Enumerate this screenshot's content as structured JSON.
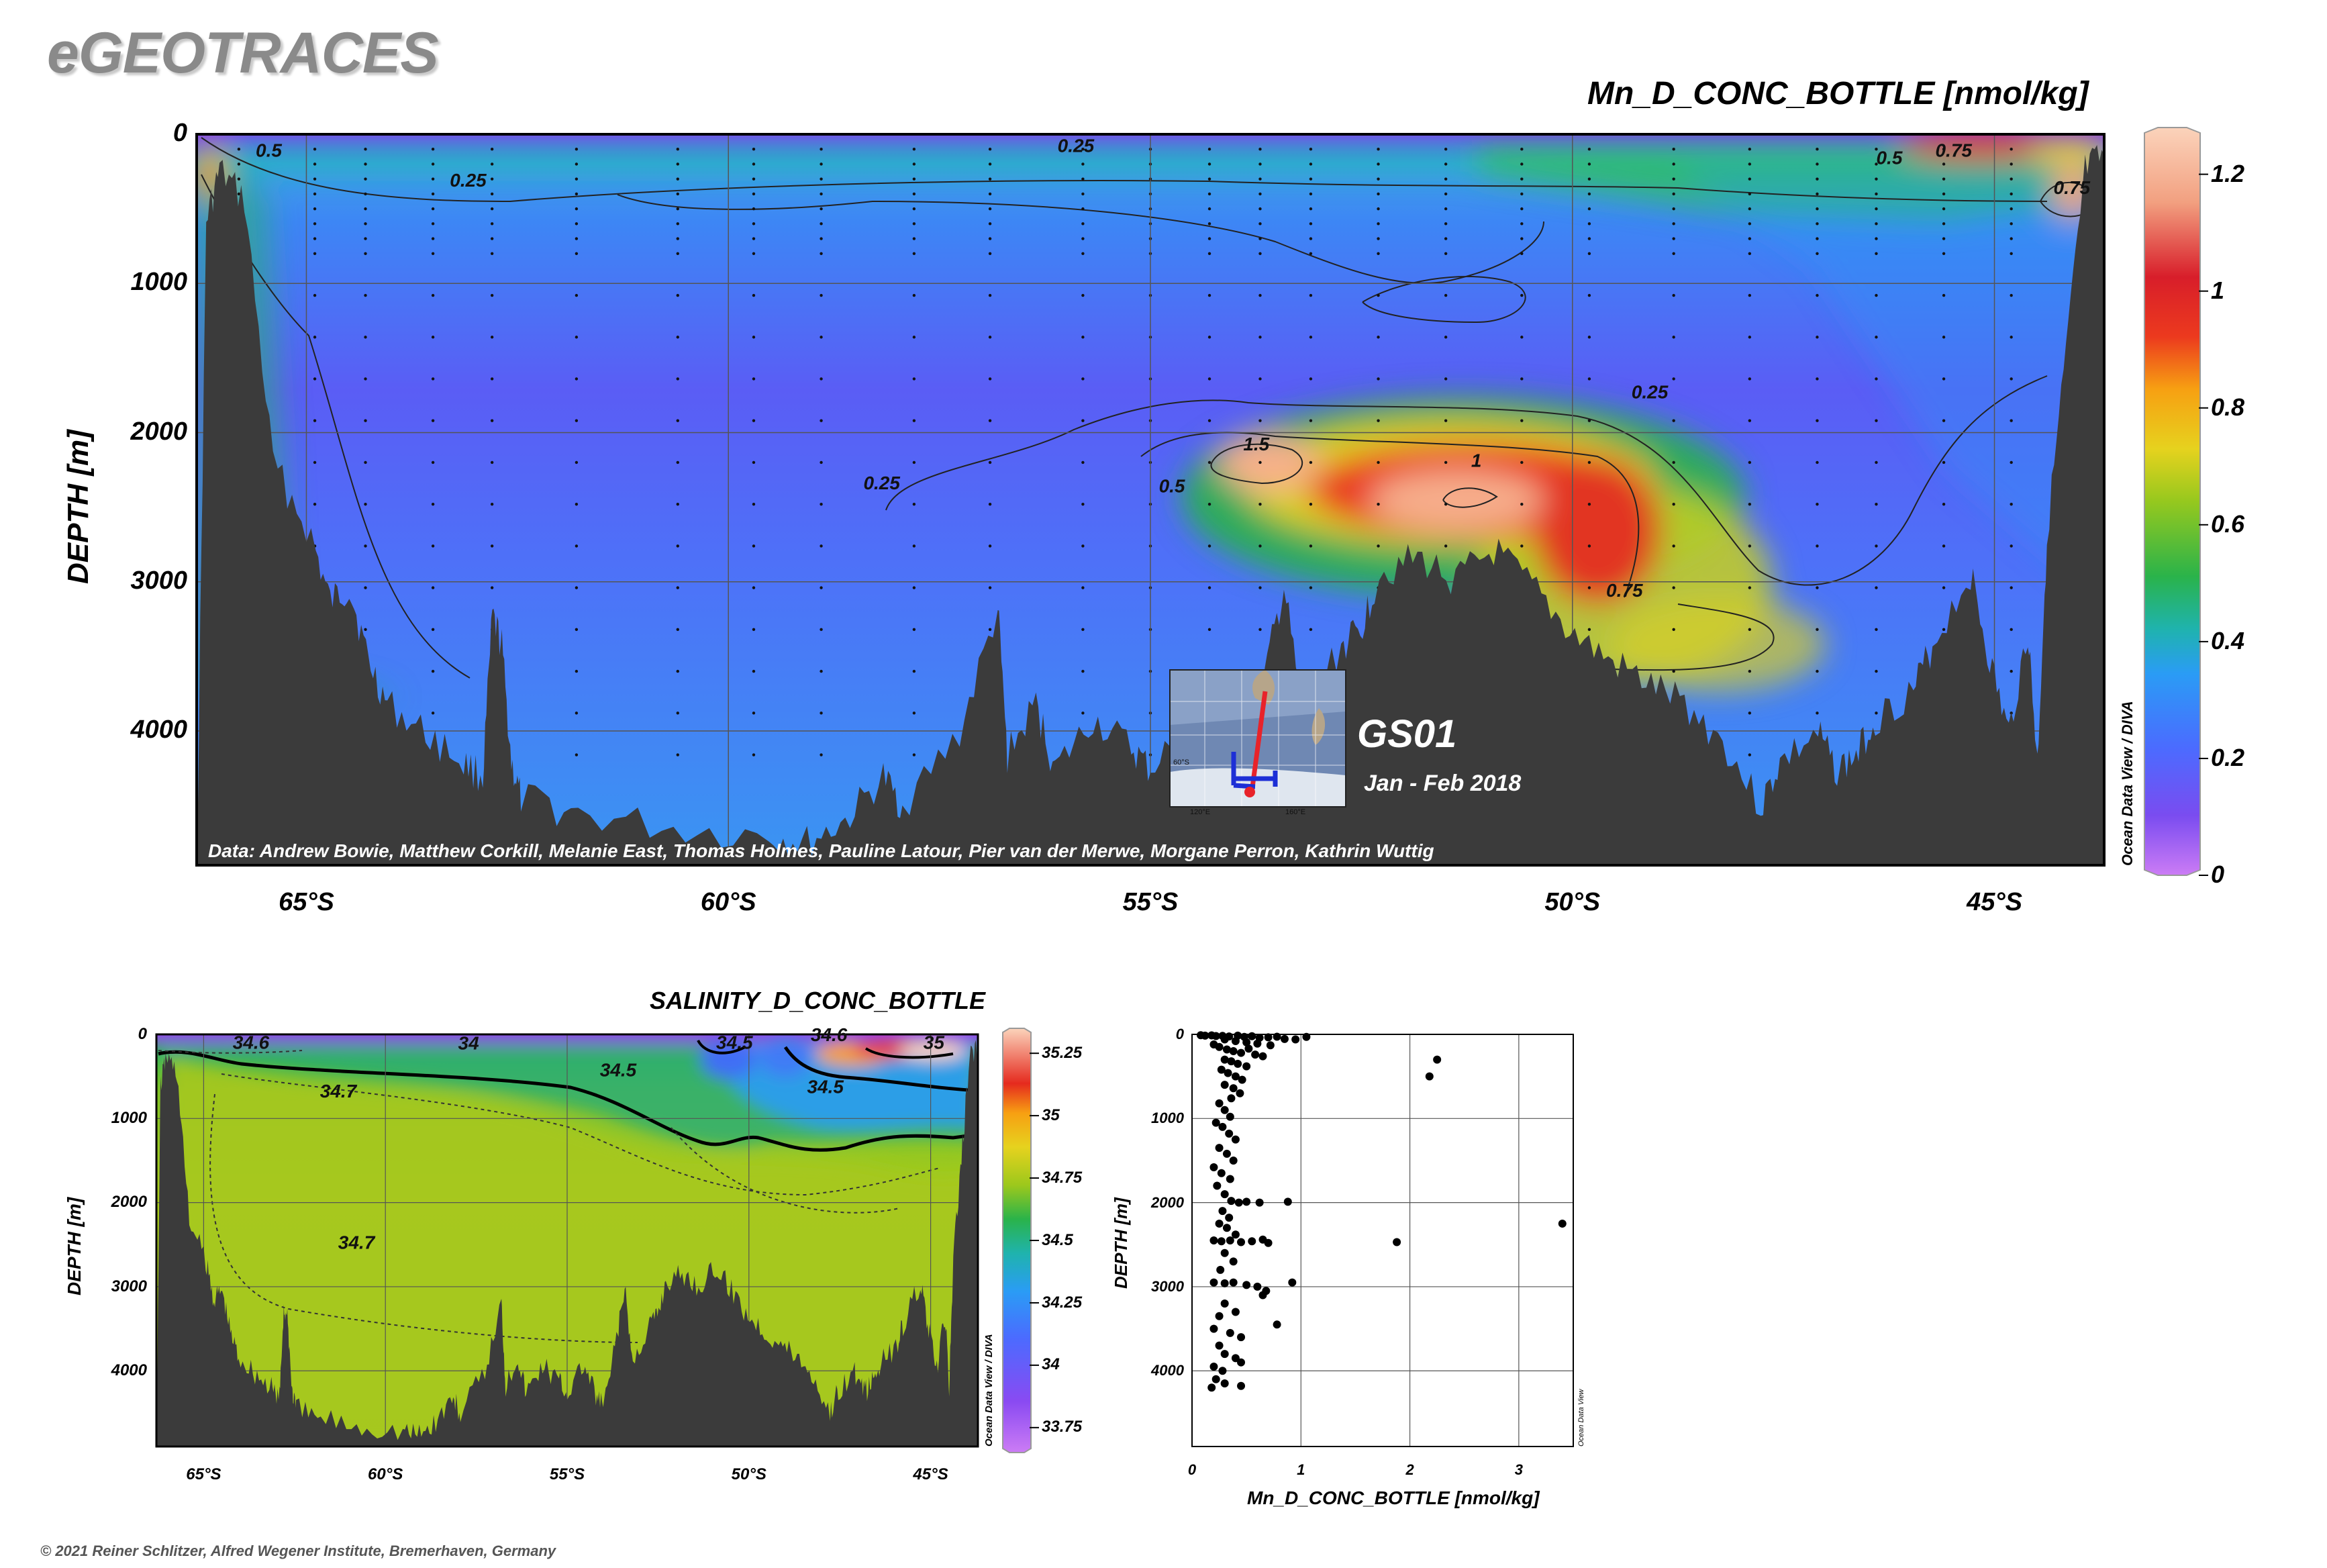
{
  "brand": "eGEOTRACES",
  "copyright": "© 2021 Reiner Schlitzer, Alfred Wegener Institute, Bremerhaven, Germany",
  "colors": {
    "land": "#3b3b3b",
    "bg": "#ffffff"
  },
  "cruise": {
    "name": "GS01",
    "dates": "Jan - Feb 2018"
  },
  "map_inset": {
    "lat_label": "60°S",
    "lon_labels": [
      "120°E",
      "160°E"
    ]
  },
  "chart_data": [
    {
      "type": "heatmap",
      "title": "Mn_D_CONC_BOTTLE [nmol/kg]",
      "ylabel": "DEPTH [m]",
      "x_ticks": [
        "65°S",
        "60°S",
        "55°S",
        "50°S",
        "45°S"
      ],
      "x_tick_values": [
        -65,
        -60,
        -55,
        -50,
        -45
      ],
      "xlim": [
        -66.3,
        -43.7
      ],
      "y_ticks": [
        "0",
        "1000",
        "2000",
        "3000",
        "4000"
      ],
      "y_tick_values": [
        0,
        1000,
        2000,
        3000,
        4000
      ],
      "ylim": [
        4900,
        0
      ],
      "colorbar": {
        "ticks": [
          "1.2",
          "1",
          "0.8",
          "0.6",
          "0.4",
          "0.2",
          "0"
        ],
        "tick_values": [
          1.2,
          1.0,
          0.8,
          0.6,
          0.4,
          0.2,
          0.0
        ],
        "range": [
          0,
          1.28
        ],
        "label": "Ocean Data View / DIVA"
      },
      "contour_labels": [
        {
          "text": "0.5",
          "x": -65.6,
          "y": 150
        },
        {
          "text": "0.25",
          "x": -63.3,
          "y": 350
        },
        {
          "text": "0.25",
          "x": -56.1,
          "y": 120
        },
        {
          "text": "0.25",
          "x": -58.4,
          "y": 2380
        },
        {
          "text": "0.25",
          "x": -49.3,
          "y": 1770
        },
        {
          "text": "1.5",
          "x": -53.9,
          "y": 2120
        },
        {
          "text": "1",
          "x": -51.2,
          "y": 2230
        },
        {
          "text": "0.5",
          "x": -54.9,
          "y": 2400
        },
        {
          "text": "0.75",
          "x": -49.6,
          "y": 3100
        },
        {
          "text": "0.75",
          "x": -45.7,
          "y": 150
        },
        {
          "text": "0.5",
          "x": -46.4,
          "y": 200
        },
        {
          "text": "0.75",
          "x": -44.3,
          "y": 400
        }
      ],
      "credit": "Data: Andrew Bowie, Matthew Corkill, Melanie East, Thomas Holmes, Pauline Latour, Pier van der Merwe, Morgane Perron, Kathrin Wuttig"
    },
    {
      "type": "heatmap",
      "title": "SALINITY_D_CONC_BOTTLE",
      "ylabel": "DEPTH [m]",
      "x_ticks": [
        "65°S",
        "60°S",
        "55°S",
        "50°S",
        "45°S"
      ],
      "x_tick_values": [
        -65,
        -60,
        -55,
        -50,
        -45
      ],
      "xlim": [
        -66.3,
        -43.7
      ],
      "y_ticks": [
        "0",
        "1000",
        "2000",
        "3000",
        "4000"
      ],
      "y_tick_values": [
        0,
        1000,
        2000,
        3000,
        4000
      ],
      "ylim": [
        4900,
        0
      ],
      "colorbar": {
        "ticks": [
          "35.25",
          "35",
          "34.75",
          "34.5",
          "34.25",
          "34",
          "33.75"
        ],
        "tick_values": [
          35.25,
          35.0,
          34.75,
          34.5,
          34.25,
          34.0,
          33.75
        ],
        "range": [
          33.65,
          35.35
        ],
        "label": "Ocean Data View / DIVA"
      },
      "contour_labels": [
        {
          "text": "34.6",
          "x": -64.2,
          "y": 170
        },
        {
          "text": "34",
          "x": -58.0,
          "y": 180
        },
        {
          "text": "34.5",
          "x": -54.1,
          "y": 500
        },
        {
          "text": "34.7",
          "x": -61.8,
          "y": 750
        },
        {
          "text": "34.5",
          "x": -50.9,
          "y": 170
        },
        {
          "text": "34.6",
          "x": -48.3,
          "y": 80
        },
        {
          "text": "35",
          "x": -45.2,
          "y": 170
        },
        {
          "text": "34.5",
          "x": -48.4,
          "y": 700
        },
        {
          "text": "34.7",
          "x": -61.3,
          "y": 2550
        }
      ]
    },
    {
      "type": "scatter",
      "xlabel": "Mn_D_CONC_BOTTLE [nmol/kg]",
      "ylabel": "DEPTH [m]",
      "x_ticks": [
        "0",
        "1",
        "2",
        "3"
      ],
      "x_tick_values": [
        0,
        1,
        2,
        3
      ],
      "xlim": [
        0,
        3.5
      ],
      "y_ticks": [
        "0",
        "1000",
        "2000",
        "3000",
        "4000"
      ],
      "y_tick_values": [
        0,
        1000,
        2000,
        3000,
        4000
      ],
      "ylim": [
        4900,
        0
      ],
      "watermark": "Ocean Data View",
      "points": [
        [
          0.08,
          10
        ],
        [
          0.12,
          15
        ],
        [
          0.18,
          12
        ],
        [
          0.22,
          20
        ],
        [
          0.28,
          18
        ],
        [
          0.34,
          25
        ],
        [
          0.42,
          15
        ],
        [
          0.48,
          30
        ],
        [
          0.55,
          22
        ],
        [
          0.62,
          40
        ],
        [
          0.7,
          35
        ],
        [
          0.78,
          28
        ],
        [
          0.85,
          55
        ],
        [
          0.95,
          60
        ],
        [
          1.05,
          30
        ],
        [
          0.3,
          60
        ],
        [
          0.4,
          80
        ],
        [
          0.5,
          95
        ],
        [
          0.6,
          110
        ],
        [
          0.72,
          130
        ],
        [
          0.2,
          120
        ],
        [
          0.25,
          150
        ],
        [
          0.32,
          180
        ],
        [
          0.38,
          200
        ],
        [
          0.45,
          220
        ],
        [
          0.52,
          170
        ],
        [
          0.58,
          240
        ],
        [
          0.65,
          260
        ],
        [
          0.3,
          300
        ],
        [
          0.36,
          320
        ],
        [
          0.42,
          350
        ],
        [
          0.5,
          380
        ],
        [
          0.27,
          420
        ],
        [
          0.33,
          460
        ],
        [
          0.4,
          500
        ],
        [
          0.46,
          540
        ],
        [
          0.3,
          600
        ],
        [
          0.38,
          640
        ],
        [
          0.44,
          700
        ],
        [
          0.36,
          760
        ],
        [
          0.25,
          820
        ],
        [
          0.3,
          900
        ],
        [
          0.35,
          980
        ],
        [
          0.22,
          1050
        ],
        [
          0.28,
          1100
        ],
        [
          0.34,
          1180
        ],
        [
          0.4,
          1250
        ],
        [
          0.25,
          1350
        ],
        [
          0.32,
          1420
        ],
        [
          0.38,
          1500
        ],
        [
          0.2,
          1580
        ],
        [
          0.27,
          1650
        ],
        [
          0.35,
          1720
        ],
        [
          0.23,
          1800
        ],
        [
          0.3,
          1900
        ],
        [
          0.36,
          1980
        ],
        [
          0.43,
          2000
        ],
        [
          0.5,
          1990
        ],
        [
          0.62,
          2000
        ],
        [
          0.88,
          1990
        ],
        [
          0.28,
          2100
        ],
        [
          0.34,
          2180
        ],
        [
          0.25,
          2250
        ],
        [
          0.32,
          2300
        ],
        [
          0.4,
          2380
        ],
        [
          0.2,
          2450
        ],
        [
          0.27,
          2460
        ],
        [
          0.35,
          2450
        ],
        [
          0.45,
          2470
        ],
        [
          0.55,
          2460
        ],
        [
          0.65,
          2440
        ],
        [
          0.7,
          2480
        ],
        [
          0.3,
          2600
        ],
        [
          0.38,
          2700
        ],
        [
          0.26,
          2800
        ],
        [
          0.2,
          2950
        ],
        [
          0.3,
          2960
        ],
        [
          0.38,
          2950
        ],
        [
          0.5,
          2980
        ],
        [
          0.68,
          3050
        ],
        [
          0.65,
          3100
        ],
        [
          0.3,
          3200
        ],
        [
          0.4,
          3300
        ],
        [
          0.78,
          3450
        ],
        [
          0.2,
          3500
        ],
        [
          0.35,
          3550
        ],
        [
          0.45,
          3600
        ],
        [
          0.25,
          3700
        ],
        [
          0.3,
          3800
        ],
        [
          0.4,
          3850
        ],
        [
          0.45,
          3900
        ],
        [
          0.2,
          3950
        ],
        [
          0.28,
          4000
        ],
        [
          0.22,
          4100
        ],
        [
          0.3,
          4150
        ],
        [
          0.18,
          4200
        ],
        [
          0.45,
          4180
        ],
        [
          0.92,
          2950
        ],
        [
          0.6,
          3000
        ],
        [
          0.25,
          3350
        ],
        [
          2.25,
          300
        ],
        [
          2.18,
          500
        ],
        [
          1.88,
          2470
        ],
        [
          3.4,
          2250
        ]
      ]
    }
  ]
}
